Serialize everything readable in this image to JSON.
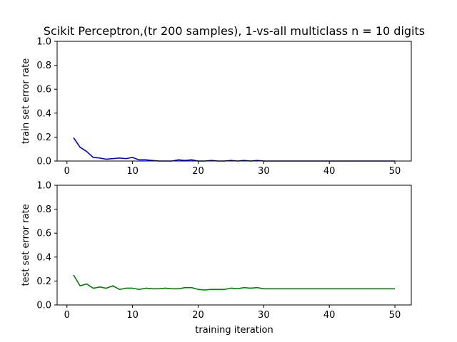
{
  "figure": {
    "title": "Scikit Perceptron,(tr 200 samples), 1-vs-all multiclass n = 10 digits"
  },
  "chart_data": [
    {
      "type": "line",
      "title": "Scikit Perceptron,(tr 200 samples), 1-vs-all multiclass n = 10 digits",
      "xlabel": "",
      "ylabel": "train set error rate",
      "xlim": [
        -1.5,
        52.5
      ],
      "ylim": [
        0,
        1.0
      ],
      "xticks": [
        0,
        10,
        20,
        30,
        40,
        50
      ],
      "yticks": [
        0.0,
        0.2,
        0.4,
        0.6,
        0.8,
        1.0
      ],
      "ytick_labels": [
        "0.0",
        "0.2",
        "0.4",
        "0.6",
        "0.8",
        "1.0"
      ],
      "grid": false,
      "series": [
        {
          "color": "#0000cc",
          "x": [
            1,
            2,
            3,
            4,
            5,
            6,
            7,
            8,
            9,
            10,
            11,
            12,
            13,
            14,
            15,
            16,
            17,
            18,
            19,
            20,
            21,
            22,
            23,
            24,
            25,
            26,
            27,
            28,
            29,
            30,
            31,
            32,
            33,
            34,
            35,
            36,
            37,
            38,
            39,
            40,
            41,
            42,
            43,
            44,
            45,
            46,
            47,
            48,
            49,
            50
          ],
          "y": [
            0.195,
            0.115,
            0.08,
            0.03,
            0.025,
            0.015,
            0.02,
            0.025,
            0.02,
            0.03,
            0.01,
            0.01,
            0.005,
            0.0,
            0.0,
            0.0,
            0.01,
            0.005,
            0.01,
            0.0,
            0.0,
            0.005,
            0.0,
            0.0,
            0.005,
            0.0,
            0.005,
            0.0,
            0.005,
            0.0,
            0.0,
            0.0,
            0.0,
            0.0,
            0.0,
            0.0,
            0.0,
            0.0,
            0.0,
            0.0,
            0.0,
            0.0,
            0.0,
            0.0,
            0.0,
            0.0,
            0.0,
            0.0,
            0.0,
            0.0
          ]
        }
      ]
    },
    {
      "type": "line",
      "title": "",
      "xlabel": "training iteration",
      "ylabel": "test set error rate",
      "xlim": [
        -1.5,
        52.5
      ],
      "ylim": [
        0,
        1.0
      ],
      "xticks": [
        0,
        10,
        20,
        30,
        40,
        50
      ],
      "yticks": [
        0.0,
        0.2,
        0.4,
        0.6,
        0.8,
        1.0
      ],
      "ytick_labels": [
        "0.0",
        "0.2",
        "0.4",
        "0.6",
        "0.8",
        "1.0"
      ],
      "grid": false,
      "series": [
        {
          "color": "#008000",
          "x": [
            1,
            2,
            3,
            4,
            5,
            6,
            7,
            8,
            9,
            10,
            11,
            12,
            13,
            14,
            15,
            16,
            17,
            18,
            19,
            20,
            21,
            22,
            23,
            24,
            25,
            26,
            27,
            28,
            29,
            30,
            31,
            32,
            33,
            34,
            35,
            36,
            37,
            38,
            39,
            40,
            41,
            42,
            43,
            44,
            45,
            46,
            47,
            48,
            49,
            50
          ],
          "y": [
            0.25,
            0.16,
            0.175,
            0.14,
            0.15,
            0.14,
            0.16,
            0.13,
            0.14,
            0.14,
            0.13,
            0.14,
            0.135,
            0.135,
            0.14,
            0.135,
            0.135,
            0.145,
            0.145,
            0.13,
            0.125,
            0.13,
            0.13,
            0.13,
            0.14,
            0.135,
            0.145,
            0.14,
            0.145,
            0.135,
            0.135,
            0.135,
            0.135,
            0.135,
            0.135,
            0.135,
            0.135,
            0.135,
            0.135,
            0.135,
            0.135,
            0.135,
            0.135,
            0.135,
            0.135,
            0.135,
            0.135,
            0.135,
            0.135,
            0.135
          ]
        }
      ]
    }
  ]
}
